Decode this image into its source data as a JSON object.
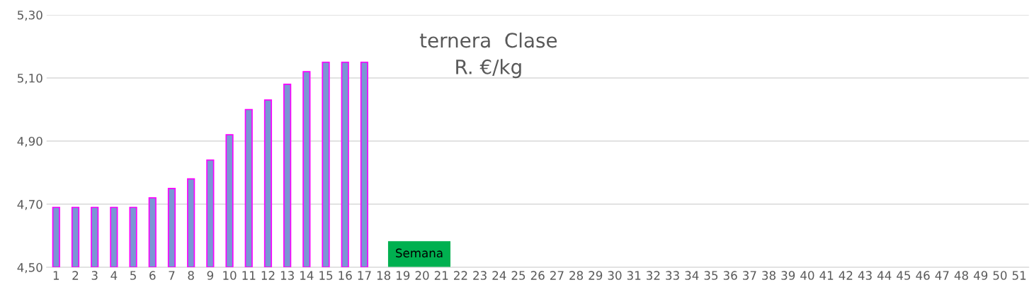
{
  "chart_data": {
    "type": "bar",
    "title": "ternera  Clase\nR. €/kg",
    "xlabel": "Semana",
    "categories": [
      "1",
      "2",
      "3",
      "4",
      "5",
      "6",
      "7",
      "8",
      "9",
      "10",
      "11",
      "12",
      "13",
      "14",
      "15",
      "16",
      "17",
      "18",
      "19",
      "20",
      "21",
      "22",
      "23",
      "24",
      "25",
      "26",
      "27",
      "28",
      "29",
      "30",
      "31",
      "32",
      "33",
      "34",
      "35",
      "36",
      "37",
      "38",
      "39",
      "40",
      "41",
      "42",
      "43",
      "44",
      "45",
      "46",
      "47",
      "48",
      "49",
      "50",
      "51"
    ],
    "series": [
      {
        "color": "#7b96d4",
        "values": [
          4.69,
          4.69,
          4.69,
          4.69,
          4.69,
          4.72,
          4.75,
          4.78,
          4.84,
          4.92,
          5.0,
          5.03,
          5.08,
          5.12,
          5.15,
          5.15,
          5.15,
          null,
          null,
          null,
          null,
          null,
          null,
          null,
          null,
          null,
          null,
          null,
          null,
          null,
          null,
          null,
          null,
          null,
          null,
          null,
          null,
          null,
          null,
          null,
          null,
          null,
          null,
          null,
          null,
          null,
          null,
          null,
          null,
          null,
          null
        ]
      }
    ],
    "ylim": [
      4.5,
      5.3
    ],
    "yticks": [
      {
        "value": 4.5,
        "label": "4,50"
      },
      {
        "value": 4.7,
        "label": "4,70"
      },
      {
        "value": 4.9,
        "label": "4,90"
      },
      {
        "value": 5.1,
        "label": "5,10"
      },
      {
        "value": 5.3,
        "label": "5,30"
      }
    ],
    "grid": "y",
    "legend": false
  }
}
